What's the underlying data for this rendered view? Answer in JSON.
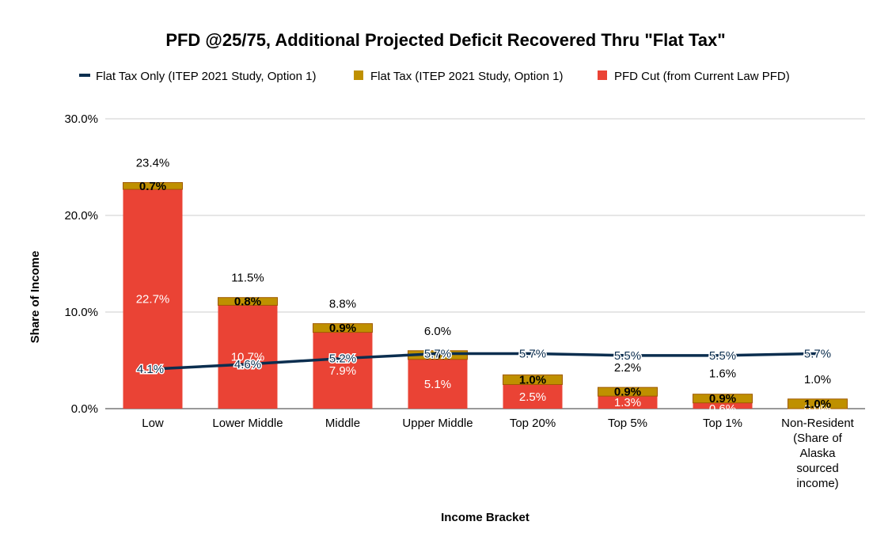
{
  "chart_data": {
    "type": "bar",
    "stacked": true,
    "title": "PFD @25/75, Additional Projected Deficit Recovered Thru \"Flat Tax\"",
    "xlabel": "Income Bracket",
    "ylabel": "Share of Income",
    "ylim": [
      0,
      30
    ],
    "yticks": [
      "0.0%",
      "10.0%",
      "20.0%",
      "30.0%"
    ],
    "grid": true,
    "legend_position": "top",
    "categories": [
      "Low",
      "Lower Middle",
      "Middle",
      "Upper Middle",
      "Top 20%",
      "Top 5%",
      "Top 1%",
      "Non-Resident (Share of Alaska sourced income)"
    ],
    "series": [
      {
        "name": "PFD Cut (from Current Law PFD)",
        "kind": "bar",
        "color": "#ea4335",
        "values": [
          22.7,
          10.7,
          7.9,
          5.1,
          2.5,
          1.3,
          0.6,
          0.0
        ],
        "labels": [
          "22.7%",
          "10.7%",
          "7.9%",
          "5.1%",
          "2.5%",
          "1.3%",
          "0.6%",
          "0.0%"
        ]
      },
      {
        "name": "Flat Tax (ITEP 2021 Study, Option 1)",
        "kind": "bar",
        "color": "#bf9000",
        "values": [
          0.7,
          0.8,
          0.9,
          0.9,
          1.0,
          0.9,
          0.9,
          1.0
        ],
        "labels": [
          "0.7%",
          "0.8%",
          "0.9%",
          "0.9%",
          "1.0%",
          "0.9%",
          "0.9%",
          "1.0%"
        ]
      },
      {
        "name": "Flat Tax Only (ITEP 2021 Study, Option 1)",
        "kind": "line",
        "color": "#0b2e4f",
        "values": [
          4.1,
          4.6,
          5.2,
          5.7,
          5.7,
          5.5,
          5.5,
          5.7
        ],
        "labels": [
          "4.1%",
          "4.6%",
          "5.2%",
          "5.7%",
          "5.7%",
          "5.5%",
          "5.5%",
          "5.7%"
        ]
      }
    ],
    "totals": [
      23.4,
      11.5,
      8.8,
      6.0,
      3.5,
      2.2,
      1.6,
      1.0
    ],
    "total_labels": [
      "23.4%",
      "11.5%",
      "8.8%",
      "6.0%",
      "",
      "2.2%",
      "1.6%",
      "1.0%"
    ]
  },
  "legend": [
    {
      "label": "Flat Tax Only (ITEP 2021 Study, Option 1)",
      "color": "#0b2e4f",
      "shape": "line"
    },
    {
      "label": "Flat Tax (ITEP 2021 Study, Option 1)",
      "color": "#bf9000",
      "shape": "square"
    },
    {
      "label": "PFD Cut (from Current Law PFD)",
      "color": "#ea4335",
      "shape": "square"
    }
  ]
}
